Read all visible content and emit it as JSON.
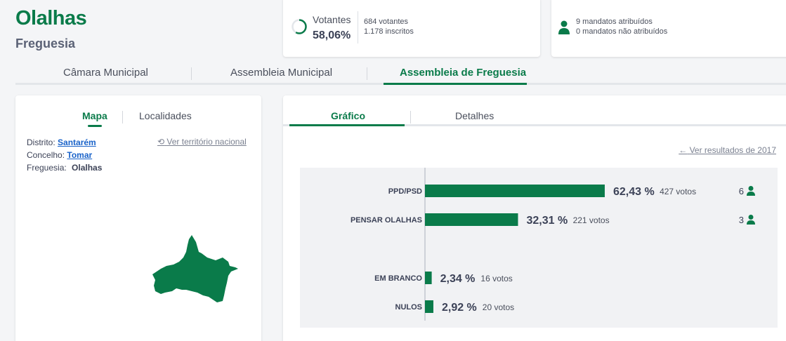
{
  "header": {
    "title": "Olalhas",
    "subtitle": "Freguesia"
  },
  "votantes": {
    "label": "Votantes",
    "percentage": "58,06%",
    "fraction": 0.5806,
    "votantes_text": "684 votantes",
    "inscritos_text": "1.178 inscritos"
  },
  "mandatos": {
    "atribuidos": "9 mandatos atribuídos",
    "nao_atribuidos": "0 mandatos não atribuídos"
  },
  "main_tabs": [
    {
      "label": "Câmara Municipal"
    },
    {
      "label": "Assembleia Municipal"
    },
    {
      "label": "Assembleia de Freguesia"
    }
  ],
  "map_panel": {
    "tabs": [
      {
        "label": "Mapa"
      },
      {
        "label": "Localidades"
      }
    ],
    "distrito_label": "Distrito:",
    "distrito_value": "Santarém",
    "concelho_label": "Concelho:",
    "concelho_value": "Tomar",
    "freguesia_label": "Freguesia:",
    "freguesia_value": "Olalhas",
    "ver_territorio": "Ver território nacional"
  },
  "results_panel": {
    "tabs": [
      {
        "label": "Gráfico"
      },
      {
        "label": "Detalhes"
      }
    ],
    "ver_resultados": "Ver resultados de 2017"
  },
  "colors": {
    "accent": "#0a7b4a",
    "link": "#1a63c9"
  },
  "chart_data": {
    "type": "bar",
    "orientation": "horizontal",
    "xlim": [
      0,
      100
    ],
    "rows": [
      {
        "category": "PPD/PSD",
        "percent": 62.43,
        "percent_label": "62,43 %",
        "votes_label": "427 votos",
        "mandates_label": "6"
      },
      {
        "category": "PENSAR OLALHAS",
        "percent": 32.31,
        "percent_label": "32,31 %",
        "votes_label": "221 votos",
        "mandates_label": "3"
      },
      {
        "category": "EM BRANCO",
        "percent": 2.34,
        "percent_label": "2,34 %",
        "votes_label": "16 votos",
        "mandates_label": ""
      },
      {
        "category": "NULOS",
        "percent": 2.92,
        "percent_label": "2,92 %",
        "votes_label": "20 votos",
        "mandates_label": ""
      }
    ]
  }
}
